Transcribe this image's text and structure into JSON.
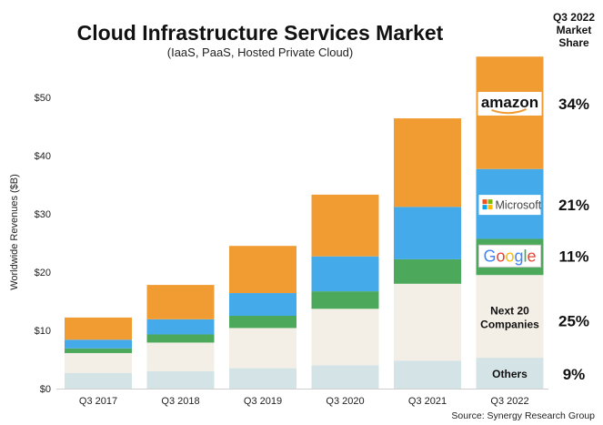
{
  "chart_data": {
    "type": "bar",
    "stacked": true,
    "title": "Cloud Infrastructure Services Market",
    "subtitle": "(IaaS, PaaS, Hosted Private Cloud)",
    "ylabel": "Worldwide Revenues ($B)",
    "xlabel": "",
    "ylim": [
      0,
      57
    ],
    "yticks": [
      "$0",
      "$10",
      "$20",
      "$30",
      "$40",
      "$50"
    ],
    "ytick_values": [
      0,
      10,
      20,
      30,
      40,
      50
    ],
    "grid": false,
    "categories": [
      "Q3 2017",
      "Q3 2018",
      "Q3 2019",
      "Q3 2020",
      "Q3 2021",
      "Q3 2022"
    ],
    "series": [
      {
        "key": "others",
        "color": "#d4e3e6",
        "values": [
          2.7,
          3.0,
          3.5,
          4.0,
          4.8,
          5.3
        ]
      },
      {
        "key": "next20",
        "color": "#f3efe6",
        "values": [
          3.4,
          4.9,
          6.9,
          9.7,
          13.2,
          14.2
        ]
      },
      {
        "key": "google",
        "color": "#4ca85a",
        "values": [
          0.8,
          1.4,
          2.1,
          3.0,
          4.2,
          6.2
        ]
      },
      {
        "key": "microsoft",
        "color": "#45aae9",
        "values": [
          1.5,
          2.6,
          3.9,
          6.0,
          9.0,
          12.0
        ]
      },
      {
        "key": "amazon",
        "color": "#f09c33",
        "values": [
          3.8,
          5.9,
          8.1,
          10.6,
          15.2,
          19.3
        ]
      }
    ],
    "share_header": [
      "Q3 2022",
      "Market",
      "Share"
    ],
    "shares": [
      {
        "key": "amazon",
        "label": "amazon",
        "share": "34%"
      },
      {
        "key": "microsoft",
        "label": "Microsoft",
        "share": "21%"
      },
      {
        "key": "google",
        "label": "Google",
        "share": "11%"
      },
      {
        "key": "next20",
        "label": "Next 20 Companies",
        "label_lines": [
          "Next 20",
          "Companies"
        ],
        "share": "25%"
      },
      {
        "key": "others",
        "label": "Others",
        "share": "9%"
      }
    ],
    "source": "Source: Synergy Research Group"
  }
}
